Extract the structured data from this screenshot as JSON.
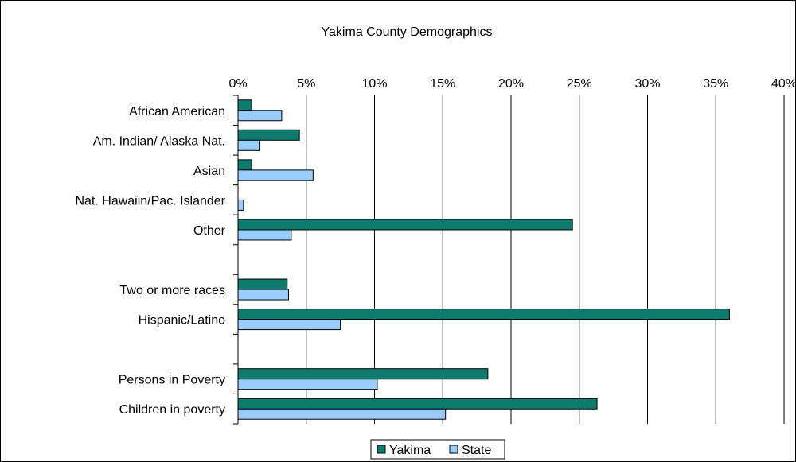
{
  "chart_data": {
    "type": "bar",
    "orientation": "horizontal",
    "title": "Yakima County Demographics",
    "categories": [
      "African American",
      "Am. Indian/ Alaska Nat.",
      "Asian",
      "Nat. Hawaiin/Pac. Islander",
      "Other",
      "",
      "Two or more races",
      "Hispanic/Latino",
      "",
      "Persons in Poverty",
      "Children in poverty"
    ],
    "series": [
      {
        "name": "Yakima",
        "color": "#0f7b6f",
        "values": [
          1.0,
          4.5,
          1.0,
          0.0,
          24.5,
          null,
          3.6,
          36.0,
          null,
          18.3,
          26.3
        ]
      },
      {
        "name": "State",
        "color": "#99ccff",
        "values": [
          3.2,
          1.6,
          5.5,
          0.4,
          3.9,
          null,
          3.7,
          7.5,
          null,
          10.2,
          15.2
        ]
      }
    ],
    "xaxis": {
      "ticks": [
        0,
        5,
        10,
        15,
        20,
        25,
        30,
        35,
        40
      ],
      "tick_labels": [
        "0%",
        "5%",
        "10%",
        "15%",
        "20%",
        "25%",
        "30%",
        "35%",
        "40%"
      ],
      "range": [
        0,
        40
      ],
      "position": "top"
    },
    "xlabel": "",
    "ylabel": "",
    "grid": true,
    "legend": {
      "position": "bottom",
      "entries": [
        "Yakima",
        "State"
      ]
    }
  }
}
